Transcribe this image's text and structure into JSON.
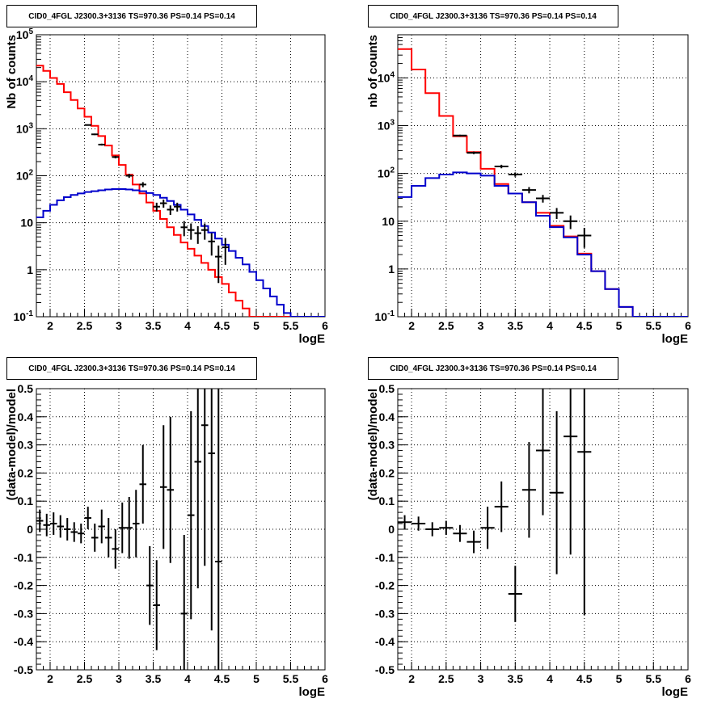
{
  "chart_data": [
    {
      "type": "histogram-log",
      "title": "CID0_4FGL J2300.3+3136 TS=970.36 PS=0.14 PS=0.14",
      "xlabel": "logE",
      "ylabel": "Nb of counts",
      "xlim": [
        1.8,
        6.0
      ],
      "ylim": [
        0.1,
        100000
      ],
      "log_y": true,
      "grid": true,
      "x_ticks": [
        "2",
        "2.5",
        "3",
        "3.5",
        "4",
        "4.5",
        "5",
        "5.5",
        "6"
      ],
      "y_ticks": [
        "10^-1",
        "1",
        "10",
        "10^2",
        "10^3",
        "10^4",
        "10^5"
      ],
      "bin_width": 0.1,
      "bin_start": 1.8,
      "series": [
        {
          "color": "#ff0000",
          "values": [
            22000,
            17000,
            12000,
            9000,
            6000,
            4100,
            2700,
            1800,
            1150,
            700,
            440,
            270,
            170,
            105,
            65,
            42,
            27,
            18,
            12,
            8,
            5.5,
            3.8,
            2.8,
            2.0,
            1.4,
            1.0,
            0.7,
            0.5,
            0.33,
            0.22,
            0.15,
            0.1,
            0.1,
            0.1,
            0.1,
            0.1,
            0.1,
            0.1,
            0.1,
            0.1,
            0.1,
            0.1
          ]
        },
        {
          "color": "#0000cc",
          "values": [
            13,
            18,
            24,
            30,
            35,
            39,
            42,
            45,
            47,
            49,
            51,
            52,
            52,
            51,
            49,
            47,
            43,
            39,
            34,
            29,
            24,
            19,
            15,
            11.5,
            8.5,
            6.2,
            4.6,
            3.4,
            2.5,
            1.8,
            1.3,
            0.9,
            0.6,
            0.4,
            0.27,
            0.18,
            0.12,
            0.1,
            0.1,
            0.1,
            0.1,
            0.1
          ]
        }
      ],
      "data_points": [
        {
          "x": 2.55,
          "y": 1200
        },
        {
          "x": 2.65,
          "y": 760
        },
        {
          "x": 2.75,
          "y": 460
        },
        {
          "x": 2.95,
          "y": 250
        },
        {
          "x": 3.15,
          "y": 100
        },
        {
          "x": 3.35,
          "y": 65
        },
        {
          "x": 3.55,
          "y": 22
        },
        {
          "x": 3.65,
          "y": 26
        },
        {
          "x": 3.75,
          "y": 19
        },
        {
          "x": 3.85,
          "y": 22
        },
        {
          "x": 3.95,
          "y": 8
        },
        {
          "x": 4.05,
          "y": 7
        },
        {
          "x": 4.15,
          "y": 6
        },
        {
          "x": 4.25,
          "y": 7
        },
        {
          "x": 4.35,
          "y": 4
        },
        {
          "x": 4.45,
          "y": 1.9
        },
        {
          "x": 4.55,
          "y": 3
        }
      ]
    },
    {
      "type": "histogram-log",
      "title": "CID0_4FGL J2300.3+3136 TS=970.36 PS=0.14 PS=0.14",
      "xlabel": "logE",
      "ylabel": "nb of counts",
      "xlim": [
        1.8,
        6.0
      ],
      "ylim": [
        0.1,
        80000
      ],
      "log_y": true,
      "grid": true,
      "x_ticks": [
        "2",
        "2.5",
        "3",
        "3.5",
        "4",
        "4.5",
        "5",
        "5.5",
        "6"
      ],
      "y_ticks": [
        "10^-1",
        "1",
        "10",
        "10^2",
        "10^3",
        "10^4"
      ],
      "bin_width": 0.2,
      "bin_start": 1.8,
      "series": [
        {
          "color": "#ff0000",
          "values": [
            40000,
            15000,
            4800,
            1600,
            600,
            280,
            125,
            60,
            38,
            25,
            15,
            8,
            4.8,
            2.1,
            0.9,
            0.38,
            0.16,
            0.1,
            0.1,
            0.1,
            0.1
          ]
        },
        {
          "color": "#0000cc",
          "values": [
            32,
            55,
            80,
            95,
            105,
            100,
            90,
            55,
            38,
            25,
            13,
            7.5,
            4.6,
            2.0,
            0.9,
            0.38,
            0.16,
            0.1,
            0.1,
            0.1,
            0.1
          ]
        }
      ],
      "data_points": [
        {
          "x": 2.7,
          "y": 620
        },
        {
          "x": 2.9,
          "y": 270
        },
        {
          "x": 3.3,
          "y": 140
        },
        {
          "x": 3.5,
          "y": 95
        },
        {
          "x": 3.7,
          "y": 45
        },
        {
          "x": 3.9,
          "y": 30
        },
        {
          "x": 4.1,
          "y": 15
        },
        {
          "x": 4.3,
          "y": 10
        },
        {
          "x": 4.5,
          "y": 5
        }
      ]
    },
    {
      "type": "scatter-errorbars",
      "title": "CID0_4FGL J2300.3+3136 TS=970.36 PS=0.14 PS=0.14",
      "xlabel": "logE",
      "ylabel": "(data-model)/model",
      "xlim": [
        1.8,
        6.0
      ],
      "ylim": [
        -0.5,
        0.5
      ],
      "grid": true,
      "x_ticks": [
        "2",
        "2.5",
        "3",
        "3.5",
        "4",
        "4.5",
        "5",
        "5.5",
        "6"
      ],
      "y_ticks": [
        "-0.5",
        "-0.4",
        "-0.3",
        "-0.2",
        "-0.1",
        "0",
        "0.1",
        "0.2",
        "0.3",
        "0.4",
        "0.5"
      ],
      "bin_width": 0.1,
      "points": [
        {
          "x": 1.85,
          "y": 0.03,
          "err": 0.04
        },
        {
          "x": 1.95,
          "y": 0.015,
          "err": 0.04
        },
        {
          "x": 2.05,
          "y": 0.02,
          "err": 0.04
        },
        {
          "x": 2.15,
          "y": 0.01,
          "err": 0.04
        },
        {
          "x": 2.25,
          "y": 0.0,
          "err": 0.04
        },
        {
          "x": 2.35,
          "y": -0.01,
          "err": 0.035
        },
        {
          "x": 2.45,
          "y": -0.015,
          "err": 0.035
        },
        {
          "x": 2.55,
          "y": 0.04,
          "err": 0.04
        },
        {
          "x": 2.65,
          "y": -0.03,
          "err": 0.05
        },
        {
          "x": 2.75,
          "y": 0.01,
          "err": 0.06
        },
        {
          "x": 2.85,
          "y": -0.03,
          "err": 0.07
        },
        {
          "x": 2.95,
          "y": -0.07,
          "err": 0.07
        },
        {
          "x": 3.05,
          "y": 0.005,
          "err": 0.09
        },
        {
          "x": 3.15,
          "y": 0.005,
          "err": 0.11
        },
        {
          "x": 3.25,
          "y": 0.02,
          "err": 0.12
        },
        {
          "x": 3.35,
          "y": 0.16,
          "err": 0.14
        },
        {
          "x": 3.45,
          "y": -0.2,
          "err": 0.14
        },
        {
          "x": 3.55,
          "y": -0.27,
          "err": 0.16
        },
        {
          "x": 3.65,
          "y": 0.15,
          "err": 0.22
        },
        {
          "x": 3.75,
          "y": 0.14,
          "err": 0.26
        },
        {
          "x": 3.95,
          "y": -0.3,
          "err": 0.28
        },
        {
          "x": 4.05,
          "y": 0.05,
          "err": 0.37
        },
        {
          "x": 4.15,
          "y": 0.24,
          "err": 0.45
        },
        {
          "x": 4.25,
          "y": 0.37,
          "err": 0.5
        },
        {
          "x": 4.35,
          "y": 0.27,
          "err": 0.63
        },
        {
          "x": 4.45,
          "y": -0.115,
          "err": 0.8
        }
      ]
    },
    {
      "type": "scatter-errorbars",
      "title": "CID0_4FGL J2300.3+3136 TS=970.36 PS=0.14 PS=0.14",
      "xlabel": "logE",
      "ylabel": "(data-model)/model",
      "xlim": [
        1.8,
        6.0
      ],
      "ylim": [
        -0.5,
        0.5
      ],
      "grid": true,
      "x_ticks": [
        "2",
        "2.5",
        "3",
        "3.5",
        "4",
        "4.5",
        "5",
        "5.5",
        "6"
      ],
      "y_ticks": [
        "-0.5",
        "-0.4",
        "-0.3",
        "-0.2",
        "-0.1",
        "0",
        "0.1",
        "0.2",
        "0.3",
        "0.4",
        "0.5"
      ],
      "bin_width": 0.2,
      "points": [
        {
          "x": 1.9,
          "y": 0.025,
          "err": 0.025
        },
        {
          "x": 2.1,
          "y": 0.02,
          "err": 0.025
        },
        {
          "x": 2.3,
          "y": 0.0,
          "err": 0.025
        },
        {
          "x": 2.5,
          "y": 0.005,
          "err": 0.025
        },
        {
          "x": 2.7,
          "y": -0.015,
          "err": 0.03
        },
        {
          "x": 2.9,
          "y": -0.045,
          "err": 0.04
        },
        {
          "x": 3.1,
          "y": 0.005,
          "err": 0.075
        },
        {
          "x": 3.3,
          "y": 0.08,
          "err": 0.09
        },
        {
          "x": 3.5,
          "y": -0.23,
          "err": 0.1
        },
        {
          "x": 3.7,
          "y": 0.14,
          "err": 0.17
        },
        {
          "x": 3.9,
          "y": 0.28,
          "err": 0.23
        },
        {
          "x": 4.1,
          "y": 0.13,
          "err": 0.29
        },
        {
          "x": 4.3,
          "y": 0.33,
          "err": 0.42
        },
        {
          "x": 4.5,
          "y": 0.275,
          "err": 0.58
        }
      ]
    }
  ]
}
